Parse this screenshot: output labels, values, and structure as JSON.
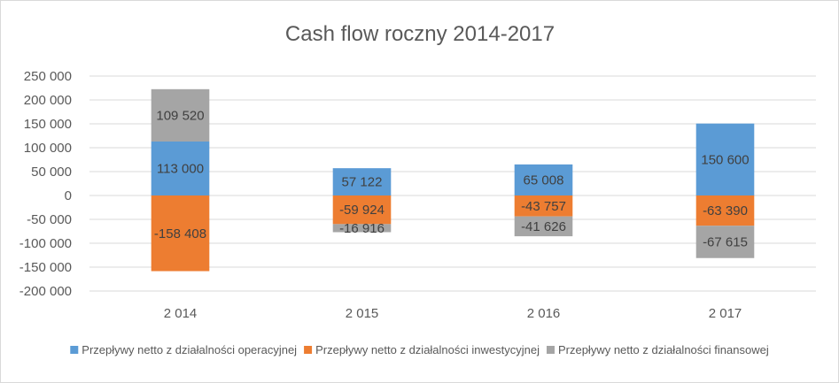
{
  "chart_data": {
    "type": "bar",
    "stacked": true,
    "title": "Cash flow roczny 2014-2017",
    "categories": [
      "2 014",
      "2 015",
      "2 016",
      "2 017"
    ],
    "ylim": [
      -200000,
      250000
    ],
    "ytick_step": 50000,
    "yticks": [
      "250 000",
      "200 000",
      "150 000",
      "100 000",
      "50 000",
      "0",
      "-50 000",
      "-100 000",
      "-150 000",
      "-200 000"
    ],
    "grid": true,
    "legend_position": "bottom",
    "series": [
      {
        "name": "Przepływy netto z działalności operacyjnej",
        "color": "#5b9bd5",
        "values": [
          113000,
          57122,
          65008,
          150600
        ],
        "labels": [
          "113 000",
          "57 122",
          "65 008",
          "150 600"
        ]
      },
      {
        "name": "Przepływy netto z działalności inwestycyjnej",
        "color": "#ed7d31",
        "values": [
          -158408,
          -59924,
          -43757,
          -63390
        ],
        "labels": [
          "-158 408",
          "-59 924",
          "-43 757",
          "-63 390"
        ]
      },
      {
        "name": "Przepływy netto z działalności finansowej",
        "color": "#a5a5a5",
        "values": [
          109520,
          -16916,
          -41626,
          -67615
        ],
        "labels": [
          "109 520",
          "-16 916",
          "-41 626",
          "-67 615"
        ]
      }
    ]
  }
}
